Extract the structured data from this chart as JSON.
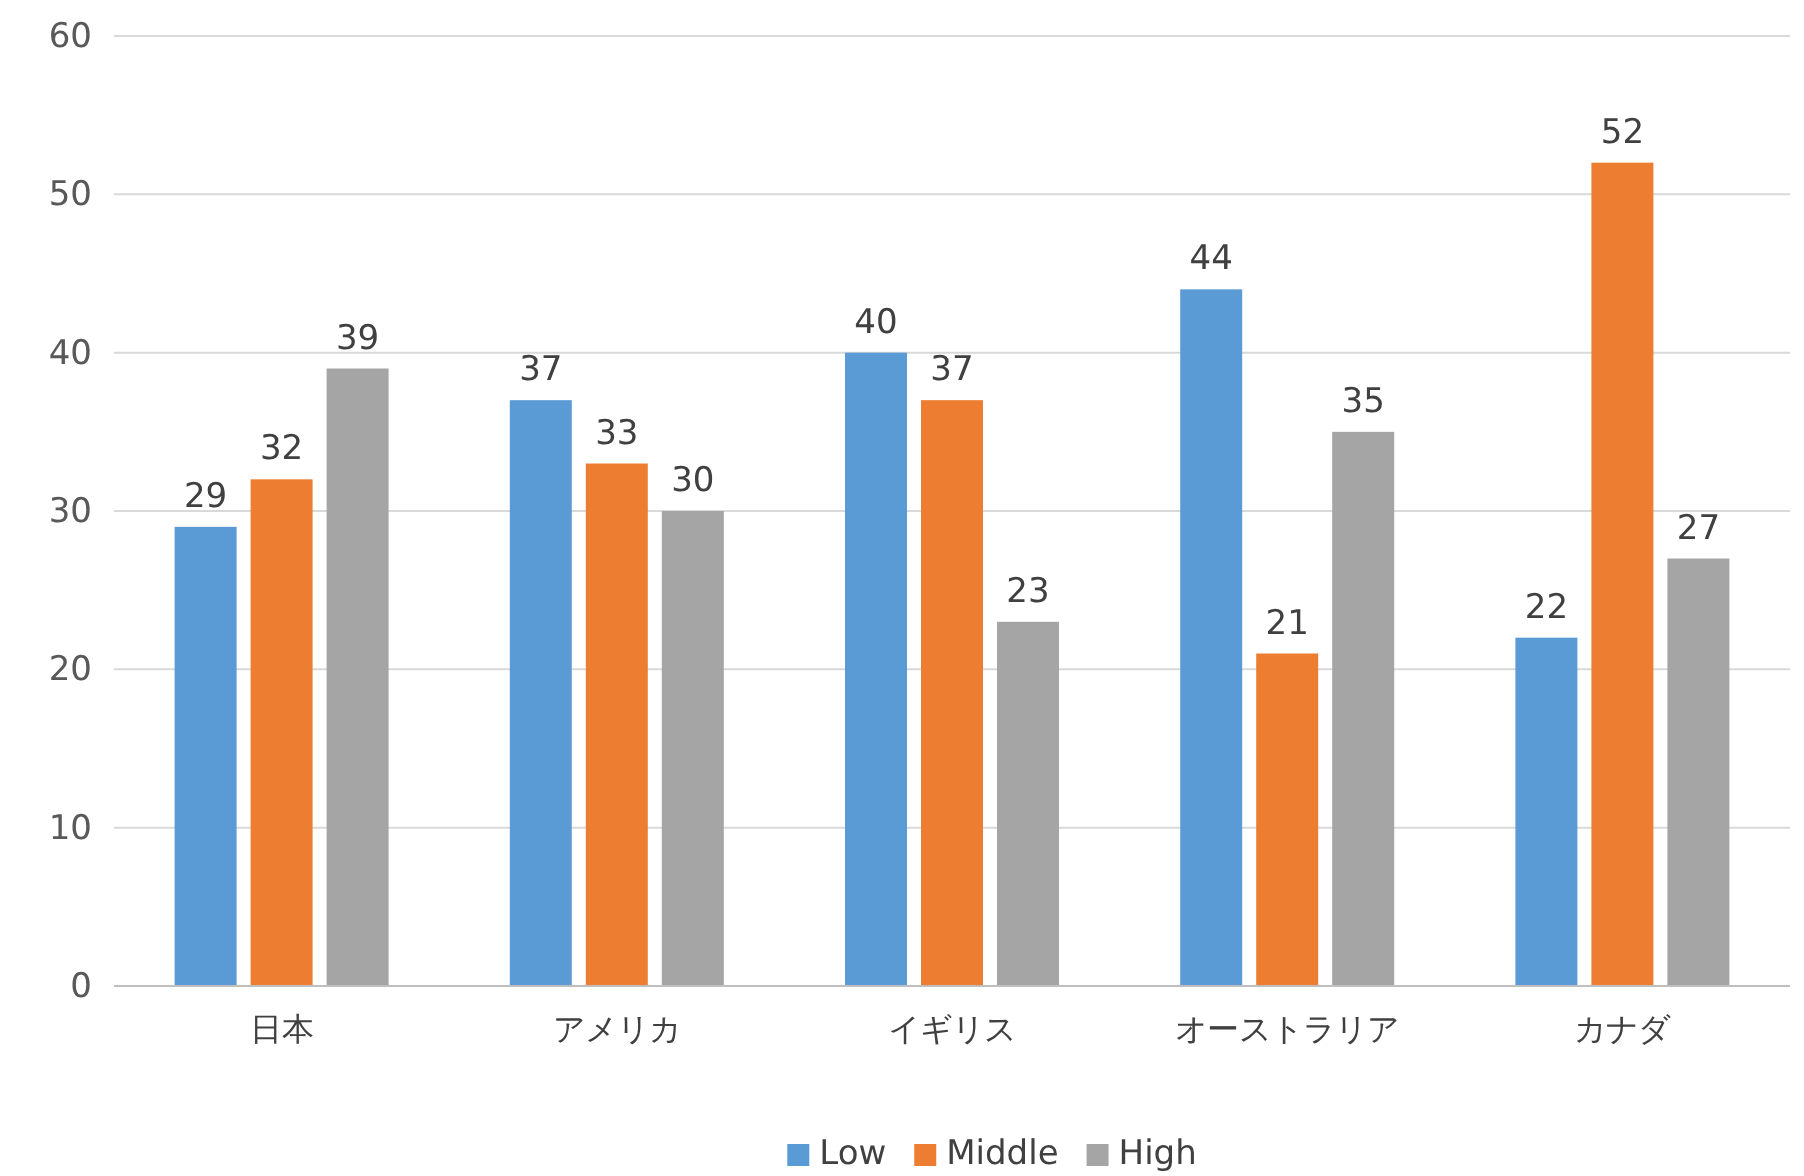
{
  "chart_data": {
    "type": "bar",
    "categories": [
      "日本",
      "アメリカ",
      "イギリス",
      "オーストラリア",
      "カナダ"
    ],
    "series": [
      {
        "name": "Low",
        "color": "#5b9bd5",
        "values": [
          29,
          37,
          40,
          44,
          22
        ]
      },
      {
        "name": "Middle",
        "color": "#ed7d31",
        "values": [
          32,
          33,
          37,
          21,
          52
        ]
      },
      {
        "name": "High",
        "color": "#a5a5a5",
        "values": [
          39,
          30,
          23,
          35,
          27
        ]
      }
    ],
    "ylim": [
      0,
      60
    ],
    "yticks": [
      0,
      10,
      20,
      30,
      40,
      50,
      60
    ],
    "grid": "y",
    "legend": "bottom",
    "data_labels": true
  }
}
